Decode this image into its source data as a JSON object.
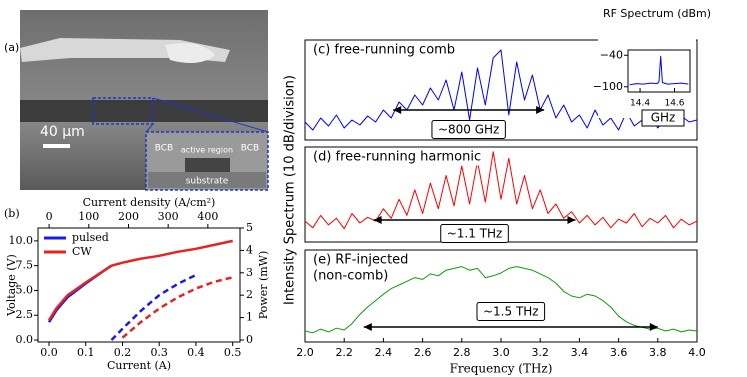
{
  "image_a": {
    "label": "(a)",
    "scale_bar": "40 μm",
    "annotations": [
      "BCB",
      "active region",
      "BCB",
      "substrate"
    ]
  },
  "chart_data": [
    {
      "type": "line",
      "label": "(b)",
      "xlabel": "Current (A)",
      "ylabel": "Voltage (V)",
      "y2label": "Power (mW)",
      "x2label": "Current density (A/cm²)",
      "x": [
        0,
        0.02,
        0.05,
        0.1,
        0.15,
        0.17,
        0.2,
        0.25,
        0.3,
        0.35,
        0.4,
        0.45,
        0.5
      ],
      "xlim": [
        -0.03,
        0.52
      ],
      "xticks": [
        {
          "value": 0,
          "label": "0.0"
        },
        0.1,
        0.2,
        0.3,
        0.4,
        0.5
      ],
      "x2lim": [
        -28,
        481
      ],
      "x2ticks": [
        0,
        100,
        200,
        300,
        400
      ],
      "ylim": [
        -0.2,
        11.3
      ],
      "yticks": [
        {
          "value": 0,
          "label": "0.0"
        },
        2.5,
        {
          "value": 5,
          "label": "5.0"
        },
        7.5,
        {
          "value": 10,
          "label": "10.0"
        }
      ],
      "y2lim": [
        -0.09,
        5
      ],
      "y2ticks": [
        0,
        1,
        2,
        3,
        4,
        5
      ],
      "series": [
        {
          "name": "pulsed",
          "color": "#1a1ae6",
          "style": "solid",
          "values": [
            1.8,
            3.0,
            4.3,
            5.7,
            7.0,
            7.5,
            null,
            null,
            null,
            null,
            null,
            null,
            null
          ]
        },
        {
          "name": "CW",
          "color": "#e62222",
          "style": "solid",
          "values": [
            2.0,
            3.2,
            4.5,
            5.8,
            7.0,
            7.5,
            7.8,
            8.2,
            8.5,
            8.9,
            9.2,
            9.6,
            10.0
          ]
        },
        {
          "name": "pulsed",
          "color": "#1a1ae6",
          "style": "dashed",
          "axis": "y2",
          "values": [
            null,
            null,
            null,
            null,
            null,
            0.0,
            0.5,
            1.3,
            2.0,
            2.5,
            2.9,
            null,
            null
          ]
        },
        {
          "name": "CW",
          "color": "#e62222",
          "style": "dashed",
          "axis": "y2",
          "values": [
            null,
            null,
            null,
            null,
            null,
            null,
            0.1,
            0.8,
            1.4,
            1.9,
            2.3,
            2.6,
            2.8
          ]
        }
      ]
    },
    {
      "type": "line",
      "title": "(c) free-running comb",
      "x": [
        2.0,
        2.04,
        2.08,
        2.12,
        2.16,
        2.2,
        2.24,
        2.28,
        2.32,
        2.36,
        2.4,
        2.44,
        2.48,
        2.52,
        2.56,
        2.6,
        2.64,
        2.68,
        2.72,
        2.76,
        2.8,
        2.84,
        2.88,
        2.92,
        2.96,
        3.0,
        3.04,
        3.08,
        3.12,
        3.16,
        3.2,
        3.24,
        3.28,
        3.32,
        3.36,
        3.4,
        3.44,
        3.48,
        3.52,
        3.56,
        3.6,
        3.64,
        3.68,
        3.72,
        3.76,
        3.8,
        3.84,
        3.88,
        3.92,
        3.96,
        4.0
      ],
      "xlim": [
        2,
        4
      ],
      "ylim": [
        0,
        100
      ],
      "series": [
        {
          "color": "#0000ff",
          "values": [
            18,
            10,
            22,
            14,
            25,
            12,
            20,
            15,
            24,
            18,
            30,
            22,
            38,
            30,
            45,
            35,
            52,
            40,
            60,
            30,
            68,
            20,
            72,
            35,
            82,
            90,
            25,
            78,
            40,
            65,
            30,
            45,
            22,
            35,
            18,
            25,
            12,
            30,
            15,
            22,
            10,
            28,
            14,
            20,
            26,
            12,
            22,
            16,
            24,
            18,
            20
          ]
        }
      ],
      "annotation": {
        "text": "~800 GHz",
        "span": [
          2.45,
          3.22
        ]
      }
    },
    {
      "type": "line",
      "title": "(d) free-running harmonic",
      "ylabel": "Intensity Spectrum (10 dB/division)",
      "x": [
        2.0,
        2.04,
        2.08,
        2.12,
        2.16,
        2.2,
        2.24,
        2.28,
        2.32,
        2.36,
        2.4,
        2.44,
        2.48,
        2.52,
        2.56,
        2.6,
        2.64,
        2.68,
        2.72,
        2.76,
        2.8,
        2.84,
        2.88,
        2.92,
        2.96,
        3.0,
        3.04,
        3.08,
        3.12,
        3.16,
        3.2,
        3.24,
        3.28,
        3.32,
        3.36,
        3.4,
        3.44,
        3.48,
        3.52,
        3.56,
        3.6,
        3.64,
        3.68,
        3.72,
        3.76,
        3.8,
        3.84,
        3.88,
        3.92,
        3.96,
        4.0
      ],
      "xlim": [
        2,
        4
      ],
      "ylim": [
        0,
        100
      ],
      "series": [
        {
          "color": "#ff0000",
          "values": [
            22,
            15,
            28,
            18,
            25,
            14,
            30,
            20,
            26,
            22,
            35,
            25,
            45,
            28,
            55,
            30,
            62,
            35,
            70,
            38,
            80,
            40,
            85,
            42,
            95,
            45,
            88,
            40,
            70,
            35,
            55,
            30,
            40,
            25,
            32,
            20,
            28,
            18,
            26,
            15,
            24,
            20,
            30,
            16,
            25,
            20,
            28,
            15,
            24,
            18,
            22
          ]
        }
      ],
      "annotation": {
        "text": "~1.1 THz",
        "span": [
          2.35,
          3.38
        ]
      }
    },
    {
      "type": "line",
      "title": [
        "(e) RF-injected",
        "(non-comb)"
      ],
      "xlabel": "Frequency (THz)",
      "x": [
        2.0,
        2.04,
        2.08,
        2.12,
        2.16,
        2.2,
        2.24,
        2.28,
        2.32,
        2.36,
        2.4,
        2.44,
        2.48,
        2.52,
        2.56,
        2.6,
        2.64,
        2.68,
        2.72,
        2.76,
        2.8,
        2.84,
        2.88,
        2.92,
        2.96,
        3.0,
        3.04,
        3.08,
        3.12,
        3.16,
        3.2,
        3.24,
        3.28,
        3.32,
        3.36,
        3.4,
        3.44,
        3.48,
        3.52,
        3.56,
        3.6,
        3.64,
        3.68,
        3.72,
        3.76,
        3.8,
        3.84,
        3.88,
        3.92,
        3.96,
        4.0
      ],
      "xlim": [
        2,
        4
      ],
      "ylim": [
        0,
        100
      ],
      "xticks": [
        {
          "value": 2,
          "label": "2.0"
        },
        2.2,
        2.4,
        2.6,
        2.8,
        {
          "value": 3,
          "label": "3.0"
        },
        3.2,
        3.4,
        3.6,
        3.8,
        {
          "value": 4,
          "label": "4.0"
        }
      ],
      "series": [
        {
          "color": "#119911",
          "values": [
            12,
            10,
            14,
            11,
            15,
            13,
            20,
            30,
            38,
            45,
            52,
            58,
            62,
            66,
            70,
            68,
            74,
            72,
            78,
            80,
            82,
            78,
            80,
            70,
            72,
            75,
            80,
            82,
            80,
            78,
            74,
            70,
            64,
            55,
            50,
            48,
            52,
            50,
            45,
            38,
            28,
            22,
            18,
            16,
            14,
            15,
            12,
            14,
            11,
            13,
            12
          ]
        }
      ],
      "annotation": {
        "text": "~1.5 THz",
        "span": [
          2.3,
          3.8
        ]
      }
    },
    {
      "type": "line",
      "title": "RF Spectrum (dBm)",
      "xlabel": "GHz",
      "x": [
        14.34,
        14.38,
        14.42,
        14.46,
        14.5,
        14.51,
        14.52,
        14.53,
        14.56,
        14.6,
        14.64,
        14.68
      ],
      "xlim": [
        14.33,
        14.69
      ],
      "xticks": [
        14.4,
        14.6
      ],
      "ylim": [
        -110,
        -30
      ],
      "yticks": [
        {
          "value": -40,
          "label": "−40"
        },
        {
          "value": -100,
          "label": "−100"
        }
      ],
      "series": [
        {
          "color": "#0000ff",
          "values": [
            -96,
            -94,
            -95,
            -93,
            -94,
            -90,
            -42,
            -92,
            -95,
            -94,
            -93,
            -95
          ]
        }
      ]
    }
  ]
}
